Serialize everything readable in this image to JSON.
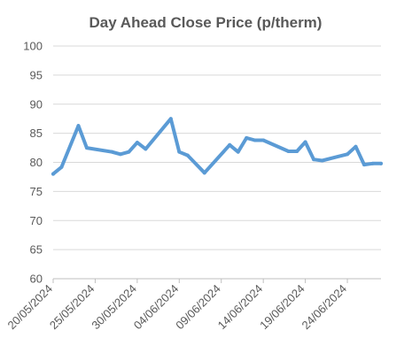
{
  "chart_data": {
    "type": "line",
    "title": "Day Ahead Close Price (p/therm)",
    "xlabel": "",
    "ylabel": "",
    "ylim": [
      60,
      100
    ],
    "yticks": [
      60,
      65,
      70,
      75,
      80,
      85,
      90,
      95,
      100
    ],
    "xlim": [
      "2024-05-20",
      "2024-06-28"
    ],
    "x_tick_labels": [
      "20/05/2024",
      "25/05/2024",
      "30/05/2024",
      "04/06/2024",
      "09/06/2024",
      "14/06/2024",
      "19/06/2024",
      "24/06/2024"
    ],
    "grid": "horizontal",
    "legend": "none",
    "series_color": "#5b9bd5",
    "series": [
      {
        "x": [
          "2024-05-20",
          "2024-05-21",
          "2024-05-23",
          "2024-05-24",
          "2024-05-27",
          "2024-05-28",
          "2024-05-29",
          "2024-05-30",
          "2024-05-31",
          "2024-06-03",
          "2024-06-04",
          "2024-06-05",
          "2024-06-07",
          "2024-06-10",
          "2024-06-11",
          "2024-06-12",
          "2024-06-13",
          "2024-06-14",
          "2024-06-17",
          "2024-06-18",
          "2024-06-19",
          "2024-06-20",
          "2024-06-21",
          "2024-06-24",
          "2024-06-25",
          "2024-06-26",
          "2024-06-27",
          "2024-06-28"
        ],
        "values": [
          78.0,
          79.2,
          86.3,
          82.5,
          81.8,
          81.4,
          81.8,
          83.4,
          82.3,
          87.5,
          81.8,
          81.2,
          78.2,
          83.0,
          81.8,
          84.2,
          83.8,
          83.8,
          81.9,
          81.9,
          83.5,
          80.5,
          80.3,
          81.4,
          82.7,
          79.6,
          79.8,
          79.8
        ]
      }
    ]
  }
}
